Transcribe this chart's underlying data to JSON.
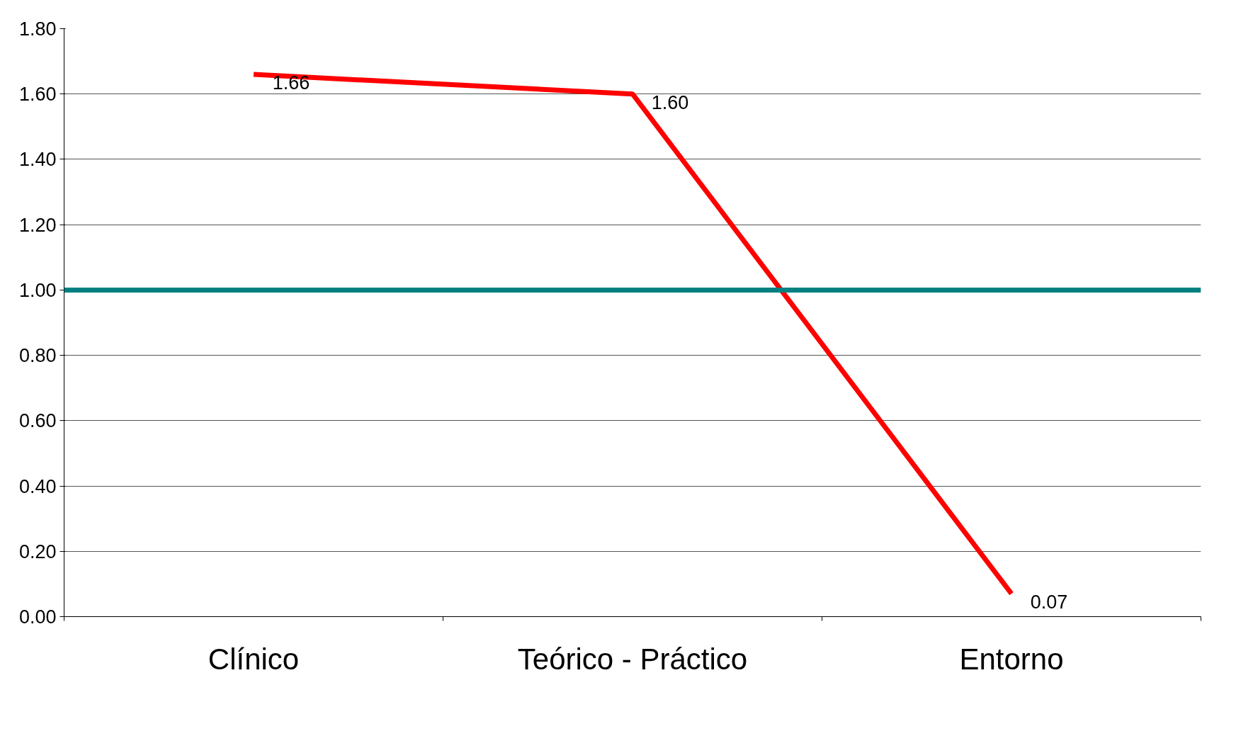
{
  "chart_data": {
    "type": "line",
    "categories": [
      "Clínico",
      "Teórico - Práctico",
      "Entorno"
    ],
    "series": [
      {
        "color": "#ff0000",
        "values": [
          1.66,
          1.6,
          0.07
        ],
        "value_labels": [
          "1.66",
          "1.60",
          "0.07"
        ]
      }
    ],
    "ylim": [
      0,
      1.8
    ],
    "yticks": [
      {
        "value": 0,
        "label": "0.00"
      },
      {
        "value": 0.2,
        "label": "0.20"
      },
      {
        "value": 0.4,
        "label": "0.40"
      },
      {
        "value": 0.6,
        "label": "0.60"
      },
      {
        "value": 0.8,
        "label": "0.80"
      },
      {
        "value": 1,
        "label": "1.00"
      },
      {
        "value": 1.2,
        "label": "1.20"
      },
      {
        "value": 1.4,
        "label": "1.40"
      },
      {
        "value": 1.6,
        "label": "1.60"
      },
      {
        "value": 1.8,
        "label": "1.80"
      }
    ],
    "ref_lines": [
      {
        "axis": "y",
        "value": 1.0,
        "color": "#008080"
      }
    ],
    "grid": "y",
    "marker": "none",
    "line_style": "solid"
  }
}
